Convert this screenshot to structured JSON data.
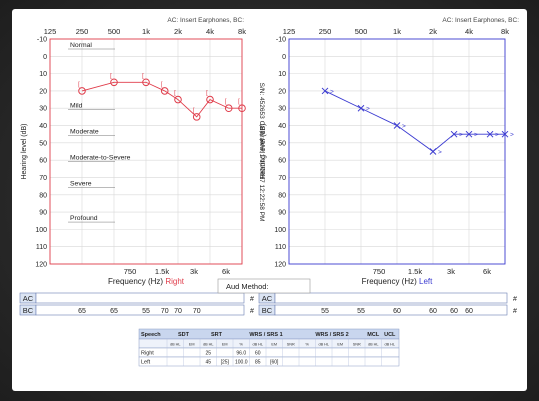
{
  "header_note_right": "AC: Insert Earphones, BC:",
  "header_note_left": "AC: Insert Earphones, BC:",
  "sidebar_text": "S/N: 452653   Calibrated: 1/10/2017 12:22:58 PM",
  "aud_method_label": "Aud Method:",
  "chart_data": [
    {
      "type": "line",
      "ear": "Right",
      "color": "#e03c4a",
      "ylabel": "Hearing level (dB)",
      "xlabel_prefix": "Frequency (Hz)",
      "xlabel_ear": "Right",
      "top_ticks": [
        "125",
        "250",
        "500",
        "1k",
        "2k",
        "4k",
        "8k"
      ],
      "bottom_ticks": [
        "750",
        "1.5k",
        "3k",
        "6k"
      ],
      "y_ticks": [
        -10,
        0,
        10,
        20,
        30,
        40,
        50,
        60,
        70,
        80,
        90,
        100,
        110,
        120
      ],
      "ylim": [
        -10,
        120
      ],
      "categories": [
        "Normal",
        "Mild",
        "Moderate",
        "Moderate-to-Severe",
        "Severe",
        "Profound"
      ],
      "category_levels": [
        -10,
        25,
        40,
        55,
        70,
        90
      ],
      "x": [
        250,
        500,
        1000,
        1500,
        2000,
        3000,
        4000,
        6000,
        8000
      ],
      "y": [
        20,
        15,
        15,
        20,
        25,
        35,
        25,
        30,
        30
      ],
      "ac_row_label": "AC",
      "bc_row_label": "BC",
      "bc_values": [
        "65",
        "65",
        "55",
        "70",
        "70",
        "70"
      ],
      "end_mark": "#"
    },
    {
      "type": "line",
      "ear": "Left",
      "color": "#3b3bd1",
      "ylabel": "Hearing level (dB)",
      "xlabel_prefix": "Frequency (Hz)",
      "xlabel_ear": "Left",
      "top_ticks": [
        "125",
        "250",
        "500",
        "1k",
        "2k",
        "4k",
        "8k"
      ],
      "bottom_ticks": [
        "750",
        "1.5k",
        "3k",
        "6k"
      ],
      "y_ticks": [
        -10,
        0,
        10,
        20,
        30,
        40,
        50,
        60,
        70,
        80,
        90,
        100,
        110,
        120
      ],
      "ylim": [
        -10,
        120
      ],
      "x": [
        250,
        500,
        1000,
        2000,
        3000,
        4000,
        6000,
        8000
      ],
      "y": [
        20,
        30,
        40,
        55,
        45,
        45,
        45,
        45
      ],
      "ac_row_label": "AC",
      "bc_row_label": "BC",
      "bc_values": [
        "55",
        "55",
        "60",
        "60",
        "60",
        "60"
      ],
      "end_mark": "#"
    }
  ],
  "speech_table": {
    "title": "Speech",
    "groups": [
      "SDT",
      "SRT",
      "WRS / SRS 1",
      "WRS / SRS 2",
      "MCL",
      "UCL"
    ],
    "subheaders": [
      "dB HL",
      "EM",
      "dB HL",
      "EM",
      "%",
      "dB HL",
      "EM",
      "SNR",
      "%",
      "dB HL",
      "EM",
      "SNR",
      "dB HL",
      "dB HL"
    ],
    "rows": [
      {
        "label": "Right",
        "cells": [
          "",
          "",
          "25",
          "",
          "96.0",
          "60",
          "",
          "",
          "",
          "",
          "",
          "",
          "",
          ""
        ]
      },
      {
        "label": "Left",
        "cells": [
          "",
          "",
          "45",
          "[25]",
          "100.0",
          "85",
          "[60]",
          "",
          "",
          "",
          "",
          "",
          "",
          ""
        ]
      }
    ]
  }
}
